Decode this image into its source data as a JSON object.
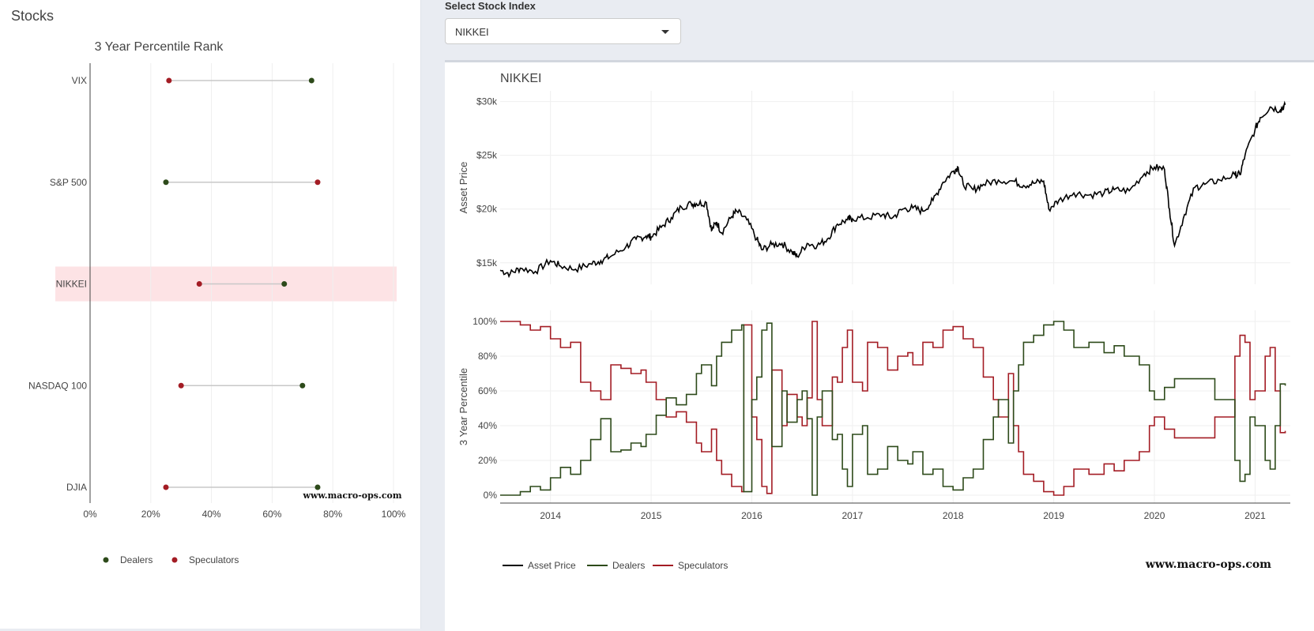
{
  "left": {
    "panel_title": "Stocks",
    "watermark": "www.macro-ops.com"
  },
  "selector": {
    "label": "Select Stock Index",
    "value": "NIKKEI"
  },
  "right": {
    "watermark": "www.macro-ops.com"
  },
  "colors": {
    "dealers": "#2d4a1a",
    "speculators": "#a31c24",
    "asset": "#000000",
    "highlight": "#fde3e5",
    "grid": "#efefef",
    "connector": "#c8c8c8"
  },
  "chart_data": [
    {
      "type": "dumbbell",
      "title": "3 Year Percentile Rank",
      "categories": [
        "VIX",
        "S&P 500",
        "NIKKEI",
        "NASDAQ 100",
        "DJIA"
      ],
      "highlight": "NIKKEI",
      "series": [
        {
          "name": "Dealers",
          "values": [
            73,
            25,
            64,
            70,
            75
          ]
        },
        {
          "name": "Speculators",
          "values": [
            26,
            75,
            36,
            30,
            25
          ]
        }
      ],
      "xlim": [
        0,
        100
      ],
      "xticks": [
        "0%",
        "20%",
        "40%",
        "60%",
        "80%",
        "100%"
      ],
      "legend": [
        "Dealers",
        "Speculators"
      ]
    },
    {
      "type": "line",
      "title": "NIKKEI",
      "ylabel": "Asset Price",
      "ylim": [
        13000,
        31000
      ],
      "yticks": [
        "$15k",
        "$20k",
        "$25k",
        "$30k"
      ],
      "ytick_values": [
        15000,
        20000,
        25000,
        30000
      ],
      "xlim": [
        2013.5,
        2021.35
      ],
      "xticks": [
        "2014",
        "2015",
        "2016",
        "2017",
        "2018",
        "2019",
        "2020",
        "2021"
      ],
      "series": [
        {
          "name": "Asset Price",
          "x": [
            2013.5,
            2013.6,
            2013.7,
            2013.85,
            2014.0,
            2014.1,
            2014.25,
            2014.4,
            2014.5,
            2014.6,
            2014.75,
            2014.85,
            2014.95,
            2015.0,
            2015.1,
            2015.2,
            2015.3,
            2015.4,
            2015.45,
            2015.55,
            2015.6,
            2015.65,
            2015.7,
            2015.8,
            2015.85,
            2015.95,
            2016.05,
            2016.1,
            2016.2,
            2016.3,
            2016.4,
            2016.45,
            2016.55,
            2016.65,
            2016.75,
            2016.85,
            2016.95,
            2017.0,
            2017.15,
            2017.3,
            2017.4,
            2017.5,
            2017.6,
            2017.7,
            2017.8,
            2017.9,
            2018.0,
            2018.05,
            2018.1,
            2018.2,
            2018.3,
            2018.45,
            2018.6,
            2018.7,
            2018.8,
            2018.9,
            2018.95,
            2019.05,
            2019.2,
            2019.35,
            2019.5,
            2019.6,
            2019.75,
            2019.9,
            2020.0,
            2020.1,
            2020.15,
            2020.2,
            2020.3,
            2020.4,
            2020.5,
            2020.65,
            2020.8,
            2020.85,
            2020.9,
            2021.0,
            2021.05,
            2021.15,
            2021.25,
            2021.3
          ],
          "y": [
            14300,
            14000,
            14500,
            14200,
            15200,
            14700,
            14400,
            14900,
            15200,
            15600,
            16500,
            17200,
            17500,
            17400,
            18300,
            19200,
            20200,
            20500,
            20500,
            20600,
            18000,
            18800,
            17800,
            19300,
            19800,
            19000,
            17200,
            16200,
            16700,
            16800,
            16000,
            15600,
            16800,
            16600,
            17200,
            18600,
            19000,
            19100,
            19200,
            19500,
            19200,
            20000,
            20100,
            19800,
            20800,
            22500,
            23500,
            23900,
            22300,
            21800,
            22300,
            22700,
            22600,
            22200,
            22400,
            22600,
            20000,
            20800,
            21500,
            21300,
            21500,
            21800,
            21700,
            23300,
            23900,
            23700,
            20000,
            16600,
            19500,
            22000,
            22300,
            22700,
            23200,
            23200,
            25000,
            27400,
            28500,
            29500,
            29200,
            29700
          ]
        }
      ]
    },
    {
      "type": "line",
      "ylabel": "3 Year Percentile",
      "ylim": [
        0,
        100
      ],
      "yticks": [
        "0%",
        "20%",
        "40%",
        "60%",
        "80%",
        "100%"
      ],
      "ytick_values": [
        0,
        20,
        40,
        60,
        80,
        100
      ],
      "xlim": [
        2013.5,
        2021.35
      ],
      "series": [
        {
          "name": "Dealers",
          "x": [
            2013.5,
            2013.7,
            2013.8,
            2013.9,
            2014.0,
            2014.1,
            2014.2,
            2014.3,
            2014.4,
            2014.5,
            2014.6,
            2014.7,
            2014.8,
            2014.9,
            2014.95,
            2015.05,
            2015.15,
            2015.25,
            2015.35,
            2015.45,
            2015.5,
            2015.6,
            2015.65,
            2015.7,
            2015.8,
            2015.9,
            2015.92,
            2016.0,
            2016.05,
            2016.1,
            2016.15,
            2016.2,
            2016.3,
            2016.35,
            2016.45,
            2016.5,
            2016.55,
            2016.6,
            2016.65,
            2016.7,
            2016.8,
            2016.85,
            2016.9,
            2016.95,
            2017.0,
            2017.1,
            2017.15,
            2017.25,
            2017.35,
            2017.45,
            2017.55,
            2017.6,
            2017.7,
            2017.8,
            2017.9,
            2018.0,
            2018.1,
            2018.2,
            2018.3,
            2018.4,
            2018.45,
            2018.55,
            2018.6,
            2018.65,
            2018.7,
            2018.8,
            2018.9,
            2019.0,
            2019.1,
            2019.2,
            2019.35,
            2019.5,
            2019.6,
            2019.7,
            2019.85,
            2019.95,
            2020.0,
            2020.1,
            2020.2,
            2020.5,
            2020.6,
            2020.8,
            2020.85,
            2020.9,
            2020.95,
            2021.0,
            2021.1,
            2021.15,
            2021.2,
            2021.25,
            2021.3
          ],
          "y": [
            0,
            2,
            5,
            3,
            10,
            16,
            12,
            20,
            32,
            44,
            25,
            26,
            30,
            28,
            35,
            46,
            56,
            52,
            58,
            70,
            75,
            63,
            80,
            88,
            95,
            98,
            2,
            55,
            68,
            95,
            99,
            28,
            60,
            42,
            55,
            60,
            44,
            0,
            45,
            60,
            32,
            35,
            15,
            5,
            35,
            40,
            12,
            15,
            28,
            20,
            18,
            25,
            12,
            15,
            5,
            3,
            10,
            15,
            32,
            45,
            55,
            30,
            60,
            75,
            88,
            92,
            98,
            100,
            95,
            85,
            88,
            82,
            86,
            80,
            75,
            60,
            55,
            62,
            67,
            67,
            55,
            20,
            8,
            12,
            45,
            40,
            20,
            15,
            40,
            64,
            63
          ]
        },
        {
          "name": "Speculators",
          "x": [
            2013.5,
            2013.7,
            2013.8,
            2013.9,
            2014.0,
            2014.1,
            2014.2,
            2014.3,
            2014.4,
            2014.5,
            2014.6,
            2014.7,
            2014.8,
            2014.9,
            2014.95,
            2015.05,
            2015.15,
            2015.25,
            2015.35,
            2015.45,
            2015.5,
            2015.6,
            2015.65,
            2015.7,
            2015.8,
            2015.9,
            2015.92,
            2016.0,
            2016.05,
            2016.1,
            2016.15,
            2016.2,
            2016.3,
            2016.35,
            2016.45,
            2016.5,
            2016.55,
            2016.6,
            2016.65,
            2016.7,
            2016.8,
            2016.85,
            2016.9,
            2016.95,
            2017.0,
            2017.1,
            2017.15,
            2017.25,
            2017.35,
            2017.45,
            2017.55,
            2017.6,
            2017.7,
            2017.8,
            2017.9,
            2018.0,
            2018.1,
            2018.2,
            2018.3,
            2018.4,
            2018.45,
            2018.55,
            2018.6,
            2018.65,
            2018.7,
            2018.8,
            2018.9,
            2019.0,
            2019.1,
            2019.2,
            2019.35,
            2019.5,
            2019.6,
            2019.7,
            2019.85,
            2019.95,
            2020.0,
            2020.1,
            2020.2,
            2020.5,
            2020.6,
            2020.8,
            2020.85,
            2020.9,
            2020.95,
            2021.0,
            2021.1,
            2021.15,
            2021.2,
            2021.25,
            2021.3
          ],
          "y": [
            100,
            98,
            95,
            97,
            90,
            85,
            88,
            65,
            60,
            55,
            75,
            73,
            70,
            72,
            65,
            55,
            45,
            48,
            42,
            30,
            25,
            38,
            20,
            12,
            5,
            2,
            98,
            45,
            32,
            5,
            1,
            72,
            40,
            58,
            45,
            40,
            56,
            100,
            55,
            40,
            68,
            65,
            85,
            95,
            65,
            60,
            88,
            85,
            72,
            80,
            82,
            75,
            88,
            85,
            95,
            97,
            90,
            85,
            68,
            55,
            45,
            70,
            40,
            25,
            12,
            8,
            2,
            0,
            5,
            15,
            12,
            18,
            14,
            20,
            25,
            40,
            45,
            38,
            33,
            33,
            45,
            80,
            92,
            88,
            55,
            60,
            80,
            85,
            60,
            36,
            37
          ]
        }
      ]
    }
  ],
  "legend": {
    "items": [
      "Asset Price",
      "Dealers",
      "Speculators"
    ]
  }
}
